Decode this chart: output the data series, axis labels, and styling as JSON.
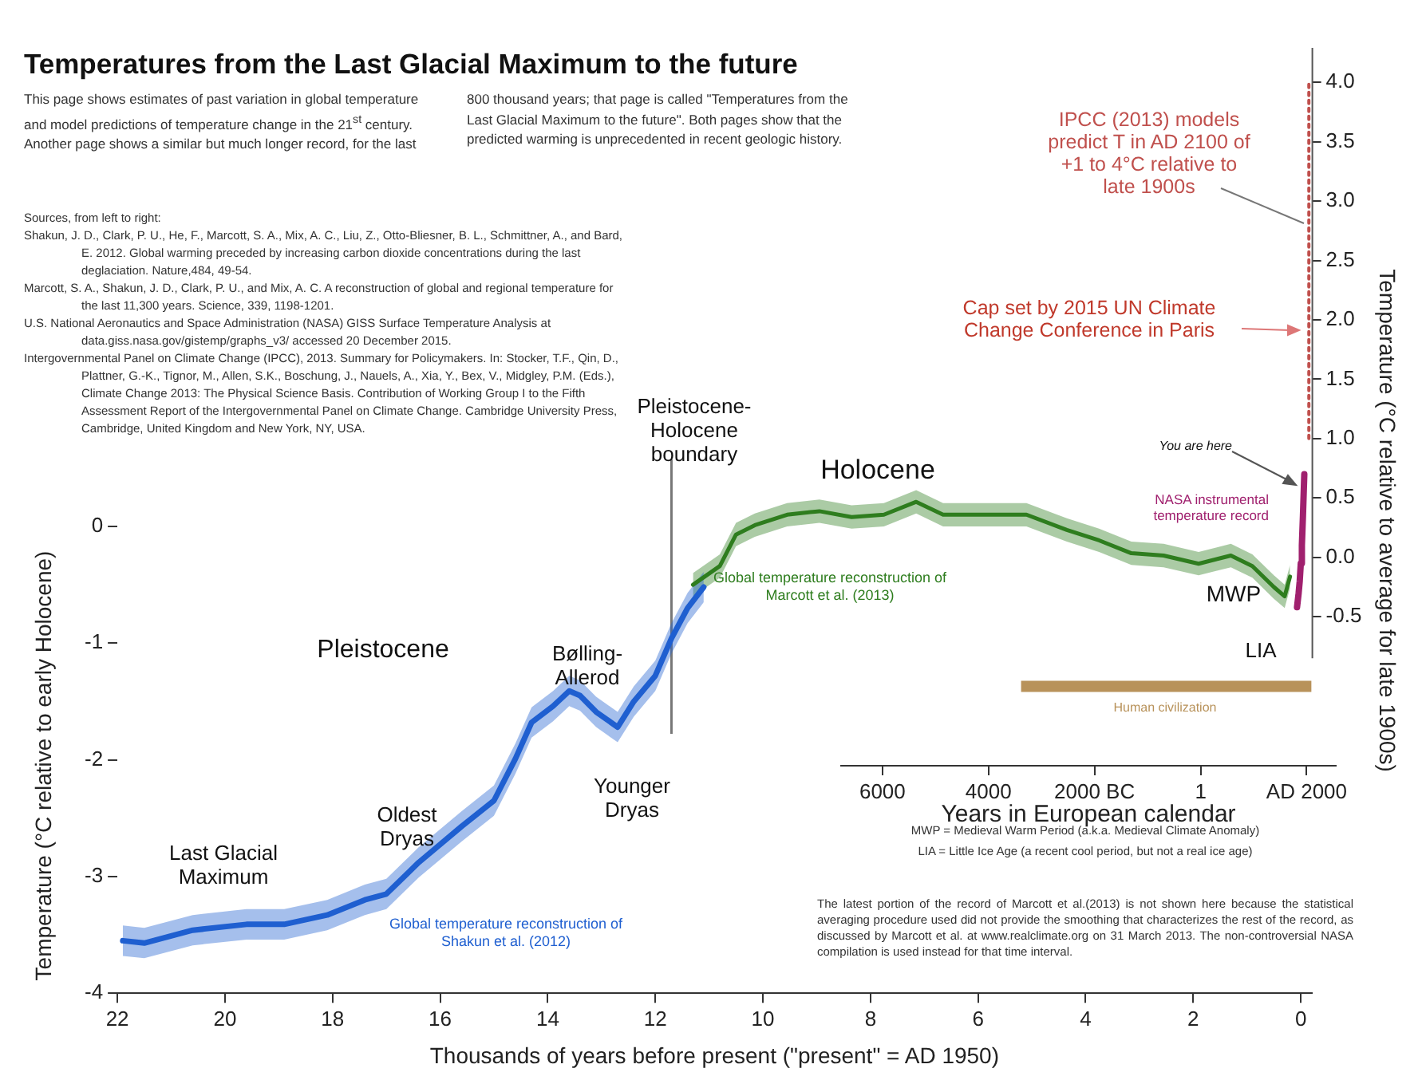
{
  "chart_data": {
    "type": "line",
    "title": "Temperatures from the Last Glacial Maximum to the future",
    "xlabel": "Thousands of years before present (\"present\" = AD 1950)",
    "ylabel": "Temperature (°C relative to early Holocene)",
    "y2label": "Temperature (°C relative to average for late 1900s)",
    "x2label": "Years in European calendar",
    "xlim": [
      22,
      -0.2
    ],
    "xticks": [
      22,
      20,
      18,
      16,
      14,
      12,
      10,
      8,
      6,
      4,
      2,
      0
    ],
    "ylim": [
      -4,
      4.1
    ],
    "yticks": [
      0,
      -1,
      -2,
      -3,
      -4
    ],
    "y2lim": [
      -3.67,
      4.29
    ],
    "y2ticks": [
      {
        "value": -0.5,
        "label": "-0.5"
      },
      {
        "value": 0,
        "label": "0.0"
      },
      {
        "value": 0.5,
        "label": "0.5"
      },
      {
        "value": 1,
        "label": "1.0"
      },
      {
        "value": 1.5,
        "label": "1.5"
      },
      {
        "value": 2,
        "label": "2.0"
      },
      {
        "value": 2.5,
        "label": "2.5"
      },
      {
        "value": 3,
        "label": "3.0"
      },
      {
        "value": 3.5,
        "label": "3.5"
      },
      {
        "value": 4,
        "label": "4.0"
      }
    ],
    "x2lim": [
      -6780,
      2550
    ],
    "x2ticks": [
      {
        "value": -6000,
        "label": "6000"
      },
      {
        "value": -4000,
        "label": "4000"
      },
      {
        "value": -2000,
        "label": "2000 BC"
      },
      {
        "value": 1,
        "label": "1"
      },
      {
        "value": 2000,
        "label": "AD 2000"
      }
    ],
    "marker": "none",
    "series": [
      {
        "name": "Global temperature reconstruction of Shakun et al. (2012)",
        "color": "#1f5fd0",
        "x": [
          21.9,
          21.5,
          20.6,
          19.6,
          18.9,
          18.1,
          17.4,
          17.0,
          16.4,
          15.6,
          15.0,
          14.6,
          14.3,
          13.9,
          13.6,
          13.4,
          13.1,
          12.7,
          12.4,
          12.0,
          11.7,
          11.4,
          11.1
        ],
        "values": [
          -3.55,
          -3.57,
          -3.46,
          -3.41,
          -3.41,
          -3.33,
          -3.2,
          -3.15,
          -2.88,
          -2.57,
          -2.35,
          -1.99,
          -1.68,
          -1.54,
          -1.41,
          -1.45,
          -1.59,
          -1.72,
          -1.5,
          -1.28,
          -0.96,
          -0.7,
          -0.52
        ],
        "lower": [
          -3.68,
          -3.7,
          -3.59,
          -3.54,
          -3.54,
          -3.46,
          -3.33,
          -3.28,
          -3.01,
          -2.7,
          -2.48,
          -2.12,
          -1.81,
          -1.67,
          -1.54,
          -1.58,
          -1.72,
          -1.85,
          -1.63,
          -1.41,
          -1.09,
          -0.83,
          -0.65
        ],
        "upper": [
          -3.42,
          -3.44,
          -3.33,
          -3.28,
          -3.28,
          -3.2,
          -3.07,
          -3.02,
          -2.75,
          -2.44,
          -2.22,
          -1.86,
          -1.55,
          -1.41,
          -1.28,
          -1.32,
          -1.46,
          -1.59,
          -1.37,
          -1.15,
          -0.83,
          -0.57,
          -0.39
        ]
      },
      {
        "name": "Global temperature reconstruction of Marcott et al. (2013)",
        "color": "#2e7d1e",
        "x": [
          11.3,
          10.8,
          10.5,
          10.15,
          9.55,
          8.95,
          8.35,
          7.75,
          7.15,
          6.65,
          5.95,
          5.1,
          4.35,
          3.75,
          3.15,
          2.55,
          1.9,
          1.3,
          0.9,
          0.5,
          0.3,
          0.2
        ],
        "values": [
          -0.5,
          -0.34,
          -0.07,
          0.01,
          0.1,
          0.13,
          0.08,
          0.1,
          0.21,
          0.1,
          0.1,
          0.1,
          -0.03,
          -0.12,
          -0.23,
          -0.25,
          -0.32,
          -0.25,
          -0.34,
          -0.52,
          -0.6,
          -0.43
        ],
        "lower": [
          -0.6,
          -0.44,
          -0.17,
          -0.09,
          0.0,
          0.03,
          -0.02,
          0.0,
          0.11,
          0.0,
          0.0,
          0.0,
          -0.13,
          -0.22,
          -0.33,
          -0.35,
          -0.42,
          -0.35,
          -0.44,
          -0.62,
          -0.7,
          -0.53
        ],
        "upper": [
          -0.4,
          -0.24,
          0.03,
          0.11,
          0.2,
          0.23,
          0.18,
          0.2,
          0.31,
          0.2,
          0.2,
          0.2,
          0.07,
          -0.02,
          -0.13,
          -0.15,
          -0.22,
          -0.15,
          -0.24,
          -0.42,
          -0.5,
          -0.33
        ]
      },
      {
        "name": "NASA instrumental temperature record",
        "color": "#a0206e",
        "axis": "y2",
        "x": [
          0.07,
          0.04,
          0.02,
          0.0,
          -0.02,
          -0.04,
          -0.065
        ],
        "values": [
          -0.42,
          -0.3,
          -0.2,
          -0.05,
          0.1,
          0.35,
          0.7
        ]
      },
      {
        "name": "IPCC (2013) models predict T in AD 2100 of +1 to 4°C relative to late 1900s",
        "color": "#c0504d",
        "axis": "y2",
        "line_style": "dotted",
        "x": [
          -0.15,
          -0.15
        ],
        "values": [
          1.0,
          4.0
        ]
      },
      {
        "name": "Human civilization",
        "color": "#b8925a",
        "x": [
          5.2,
          -0.2
        ],
        "values": [
          -1.37,
          -1.37
        ]
      }
    ],
    "ref_lines": [
      {
        "axis": "x",
        "value": 11.7,
        "label": "Pleistocene-Holocene boundary",
        "color": "#777777"
      }
    ],
    "annotations": [
      "This page shows estimates of past variation in global temperature and model predictions of temperature change in the 21$^{st}$ century. Another page shows a similar but much longer record, for the last 800 thousand years; that page is called \"Temperatures from the Last Glacial Maximum to the future\". Both pages show that the predicted warming is unprecedented in recent geologic history.",
      "Sources, from left to right:",
      "Shakun, J. D., Clark, P. U., He, F., Marcott, S. A., Mix, A. C., Liu, Z., Otto-Bliesner, B. L., Schmittner, A., and Bard, E. 2012. Global warming preceded by increasing carbon dioxide concentrations during the last deglaciation. Nature,484, 49-54.",
      "Marcott, S. A., Shakun, J. D., Clark, P. U., and Mix, A. C. A reconstruction of global and regional temperature for the last 11,300 years. Science, 339, 1198-1201.",
      "U.S. National Aeronautics and Space Administration (NASA) GISS Surface Temperature Analysis at data.giss.nasa.gov/gistemp/graphs_v3/ accessed 20 December 2015.",
      "Intergovernmental Panel on Climate Change (IPCC), 2013. Summary for Policymakers. In: Stocker, T.F., Qin, D., Plattner, G.-K., Tignor, M., Allen, S.K., Boschung, J., Nauels, A., Xia, Y., Bex, V., Midgley, P.M. (Eds.), Climate Change 2013: The Physical Science Basis. Contribution of Working Group I to the Fifth Assessment Report of the Intergovernmental Panel on Climate Change. Cambridge University Press, Cambridge, United Kingdom and New York, NY, USA.",
      "Last Glacial Maximum",
      "Oldest Dryas",
      "Pleistocene",
      "Bølling-Allerod",
      "Younger Dryas",
      "Holocene",
      "MWP",
      "LIA",
      "You are here",
      "Cap set by 2015 UN Climate Change Conference in Paris",
      "MWP = Medieval Warm Period (a.k.a. Medieval Climate Anomaly)",
      "LIA = Little Ice Age (a recent cool period, but not a real ice age)",
      "The latest portion of the record of Marcott et al.(2013) is not shown here because the statistical averaging procedure used did not provide the smoothing that characterizes the rest of the record, as discussed by Marcott et al. at www.realclimate.org on 31 March 2013. The non-controversial NASA compilation is used instead for that time interval."
    ]
  }
}
